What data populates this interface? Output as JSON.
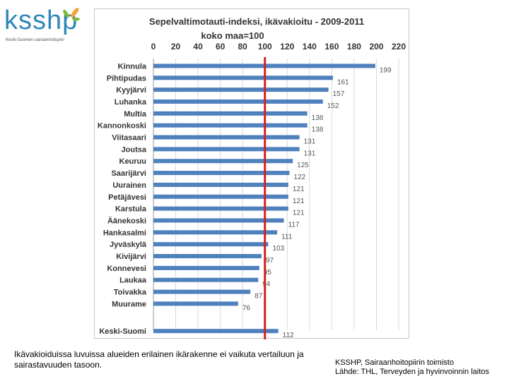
{
  "logo": {
    "text": "ksshp",
    "subtitle": "Keski-Suomen sairaanhoitopiiri",
    "colors": {
      "text": "#2f86b8",
      "leaf_green": "#7dbb3c",
      "leaf_orange": "#f2a33a"
    }
  },
  "chart_data": {
    "type": "bar",
    "orientation": "horizontal",
    "title": "Sepelvaltimotauti-indeksi, ikävakioitu - 2009-2011",
    "subtitle": "koko maa=100",
    "xlim": [
      0,
      220
    ],
    "xticks": [
      "0",
      "20",
      "40",
      "60",
      "80",
      "100",
      "120",
      "140",
      "160",
      "180",
      "200",
      "220"
    ],
    "reference_line": {
      "value": 100,
      "color": "#d32020"
    },
    "bar_color": "#4f81bd",
    "categories": [
      "Kinnula",
      "Pihtipudas",
      "Kyyjärvi",
      "Luhanka",
      "Multia",
      "Kannonkoski",
      "Viitasaari",
      "Joutsa",
      "Keuruu",
      "Saarijärvi",
      "Uurainen",
      "Petäjävesi",
      "Karstula",
      "Äänekoski",
      "Hankasalmi",
      "Jyväskylä",
      "Kivijärvi",
      "Konnevesi",
      "Laukaa",
      "Toivakka",
      "Muurame",
      "Keski-Suomi"
    ],
    "values": [
      199,
      161,
      157,
      152,
      138,
      138,
      131,
      131,
      125,
      122,
      121,
      121,
      121,
      117,
      111,
      103,
      97,
      95,
      94,
      87,
      76,
      112
    ],
    "value_labels": [
      "199",
      "161",
      "157",
      "152",
      "138",
      "138",
      "131",
      "131",
      "125",
      "122",
      "121",
      "121",
      "121",
      "117",
      "111",
      "103",
      "97",
      "95",
      "94",
      "87",
      "76",
      "112"
    ],
    "gap_before_last": true
  },
  "footnote": "Ikävakioiduissa luvuissa alueiden erilainen ikärakenne ei vaikuta vertailuun ja sairastavuuden tasoon.",
  "source": {
    "line1": "KSSHP, Sairaanhoitopiirin toimisto",
    "line2": "Lähde: THL, Terveyden ja hyvinvoinnin laitos"
  }
}
